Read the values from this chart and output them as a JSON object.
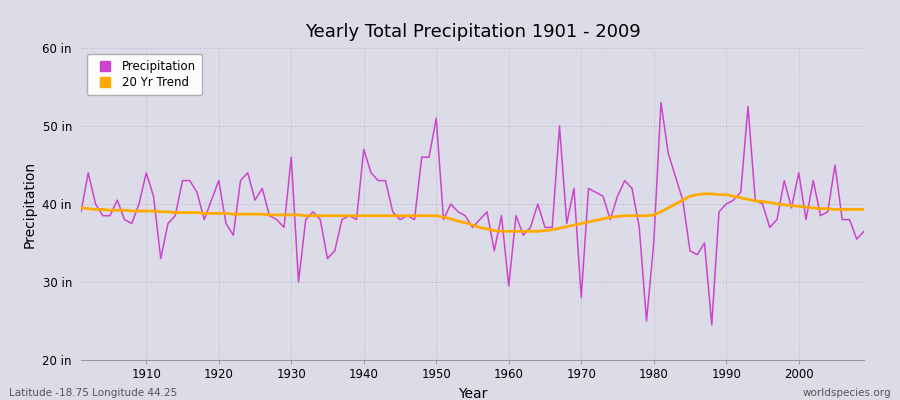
{
  "title": "Yearly Total Precipitation 1901 - 2009",
  "xlabel": "Year",
  "ylabel": "Precipitation",
  "ylim": [
    20,
    60
  ],
  "yticks": [
    20,
    30,
    40,
    50,
    60
  ],
  "ytick_labels": [
    "20 in",
    "30 in",
    "40 in",
    "50 in",
    "60 in"
  ],
  "xlim": [
    1901,
    2009
  ],
  "xticks": [
    1910,
    1920,
    1930,
    1940,
    1950,
    1960,
    1970,
    1980,
    1990,
    2000
  ],
  "precip_color": "#cc44cc",
  "trend_color": "#ffaa00",
  "bg_color": "#dcdce8",
  "plot_bg_color": "#dcdce8",
  "legend_labels": [
    "Precipitation",
    "20 Yr Trend"
  ],
  "footer_left": "Latitude -18.75 Longitude 44.25",
  "footer_right": "worldspecies.org",
  "years": [
    1901,
    1902,
    1903,
    1904,
    1905,
    1906,
    1907,
    1908,
    1909,
    1910,
    1911,
    1912,
    1913,
    1914,
    1915,
    1916,
    1917,
    1918,
    1919,
    1920,
    1921,
    1922,
    1923,
    1924,
    1925,
    1926,
    1927,
    1928,
    1929,
    1930,
    1931,
    1932,
    1933,
    1934,
    1935,
    1936,
    1937,
    1938,
    1939,
    1940,
    1941,
    1942,
    1943,
    1944,
    1945,
    1946,
    1947,
    1948,
    1949,
    1950,
    1951,
    1952,
    1953,
    1954,
    1955,
    1956,
    1957,
    1958,
    1959,
    1960,
    1961,
    1962,
    1963,
    1964,
    1965,
    1966,
    1967,
    1968,
    1969,
    1970,
    1971,
    1972,
    1973,
    1974,
    1975,
    1976,
    1977,
    1978,
    1979,
    1980,
    1981,
    1982,
    1983,
    1984,
    1985,
    1986,
    1987,
    1988,
    1989,
    1990,
    1991,
    1992,
    1993,
    1994,
    1995,
    1996,
    1997,
    1998,
    1999,
    2000,
    2001,
    2002,
    2003,
    2004,
    2005,
    2006,
    2007,
    2008,
    2009
  ],
  "precip": [
    39.0,
    44.0,
    40.0,
    38.5,
    38.5,
    40.5,
    38.0,
    37.5,
    40.0,
    44.0,
    41.0,
    33.0,
    37.5,
    38.5,
    43.0,
    43.0,
    41.5,
    38.0,
    40.5,
    43.0,
    37.5,
    36.0,
    43.0,
    44.0,
    40.5,
    42.0,
    38.5,
    38.0,
    37.0,
    46.0,
    30.0,
    38.0,
    39.0,
    38.0,
    33.0,
    34.0,
    38.0,
    38.5,
    38.0,
    47.0,
    44.0,
    43.0,
    43.0,
    39.0,
    38.0,
    38.5,
    38.0,
    46.0,
    46.0,
    51.0,
    38.0,
    40.0,
    39.0,
    38.5,
    37.0,
    38.0,
    39.0,
    34.0,
    38.5,
    29.5,
    38.5,
    36.0,
    37.0,
    40.0,
    37.0,
    37.0,
    50.0,
    37.5,
    42.0,
    28.0,
    42.0,
    41.5,
    41.0,
    38.0,
    41.0,
    43.0,
    42.0,
    37.0,
    25.0,
    35.0,
    53.0,
    46.5,
    43.5,
    40.5,
    34.0,
    33.5,
    35.0,
    24.5,
    39.0,
    40.0,
    40.5,
    41.5,
    52.5,
    40.5,
    40.0,
    37.0,
    38.0,
    43.0,
    39.5,
    44.0,
    38.0,
    43.0,
    38.5,
    39.0,
    45.0,
    38.0,
    38.0,
    35.5,
    36.5
  ],
  "trend": [
    39.5,
    39.4,
    39.3,
    39.3,
    39.2,
    39.2,
    39.2,
    39.1,
    39.1,
    39.1,
    39.1,
    39.0,
    39.0,
    38.9,
    38.9,
    38.9,
    38.9,
    38.8,
    38.8,
    38.8,
    38.8,
    38.7,
    38.7,
    38.7,
    38.7,
    38.7,
    38.6,
    38.6,
    38.6,
    38.6,
    38.6,
    38.5,
    38.5,
    38.5,
    38.5,
    38.5,
    38.5,
    38.5,
    38.5,
    38.5,
    38.5,
    38.5,
    38.5,
    38.5,
    38.5,
    38.5,
    38.5,
    38.5,
    38.5,
    38.5,
    38.3,
    38.1,
    37.8,
    37.6,
    37.3,
    37.0,
    36.8,
    36.6,
    36.5,
    36.5,
    36.5,
    36.5,
    36.5,
    36.5,
    36.6,
    36.7,
    36.9,
    37.1,
    37.3,
    37.5,
    37.7,
    37.9,
    38.1,
    38.3,
    38.4,
    38.5,
    38.5,
    38.5,
    38.5,
    38.6,
    39.0,
    39.5,
    40.0,
    40.5,
    41.0,
    41.2,
    41.3,
    41.3,
    41.2,
    41.2,
    41.0,
    40.8,
    40.6,
    40.4,
    40.3,
    40.2,
    40.0,
    39.9,
    39.8,
    39.7,
    39.6,
    39.5,
    39.4,
    39.4,
    39.3,
    39.3,
    39.3,
    39.3,
    39.3
  ]
}
